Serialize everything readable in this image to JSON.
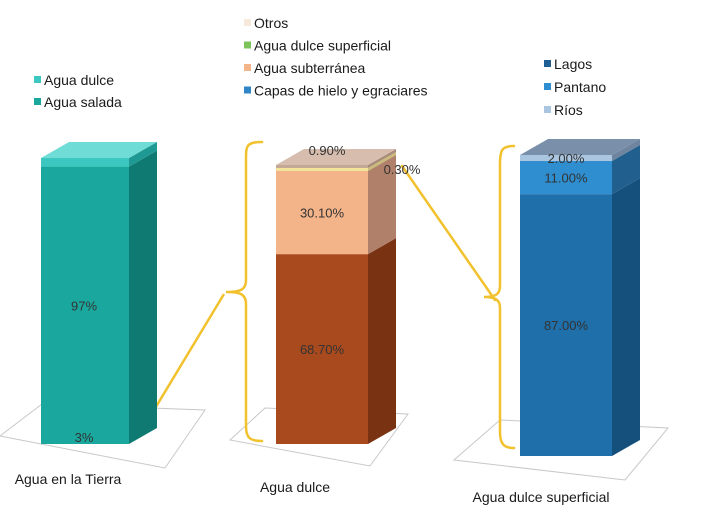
{
  "chart_data": [
    {
      "type": "bar",
      "variant": "3d-stacked-100",
      "category": "Agua en la Tierra",
      "segments": [
        {
          "name": "Agua salada",
          "value": 97,
          "label": "97%",
          "color": "#1aa89e",
          "side": "#0f7a72",
          "top": "#2ec4b8"
        },
        {
          "name": "Agua dulce",
          "value": 3,
          "label": "3%",
          "color": "#3cc8c0",
          "side": "#1f9993",
          "top": "#6fdcd6"
        }
      ],
      "legend": [
        "Agua dulce",
        "Agua salada"
      ],
      "legend_colors": [
        "#3cc8c0",
        "#1aa89e"
      ]
    },
    {
      "type": "bar",
      "variant": "3d-stacked-100",
      "category": "Agua dulce",
      "segments": [
        {
          "name": "Capas de hielo y egraciares",
          "value": 68.7,
          "label": "68.70%",
          "color": "#a84a1e",
          "side": "#7a3312",
          "top": "#c25a2a"
        },
        {
          "name": "Agua subterránea",
          "value": 30.1,
          "label": "30.10%",
          "color": "#f4b48a",
          "side": "#b0806a",
          "top": "#f7c7a6"
        },
        {
          "name": "Agua dulce superficial",
          "value": 0.3,
          "label": "0.30%",
          "color": "#f2e59a",
          "side": "#c9bb79",
          "top": "#f7ecb2"
        },
        {
          "name": "Otros",
          "value": 0.9,
          "label": "0.90%",
          "color": "#c4a896",
          "side": "#a88b78",
          "top": "#d6bdad"
        }
      ],
      "legend": [
        "Otros",
        "Agua dulce superficial",
        "Agua subterránea",
        "Capas de hielo y egraciares"
      ],
      "legend_colors": [
        "#f7e9dc",
        "#7cc45a",
        "#f4b48a",
        "#2f86c6"
      ]
    },
    {
      "type": "bar",
      "variant": "3d-stacked-100",
      "category": "Agua dulce superficial",
      "segments": [
        {
          "name": "Lagos",
          "value": 87,
          "label": "87.00%",
          "color": "#1f6faa",
          "side": "#154f7c",
          "top": "#2b82c2"
        },
        {
          "name": "Pantano",
          "value": 11,
          "label": "11.00%",
          "color": "#2e8ed0",
          "side": "#215f8e",
          "top": "#4aa2dc"
        },
        {
          "name": "Ríos",
          "value": 2,
          "label": "2.00%",
          "color": "#a9c5df",
          "side": "#6f849e",
          "top": "#7a90aa"
        }
      ],
      "legend": [
        "Lagos",
        "Pantano",
        "Ríos"
      ],
      "legend_colors": [
        "#1f5f94",
        "#2e8ed0",
        "#a9c5df"
      ]
    }
  ],
  "connector_color": "#f2c12e"
}
